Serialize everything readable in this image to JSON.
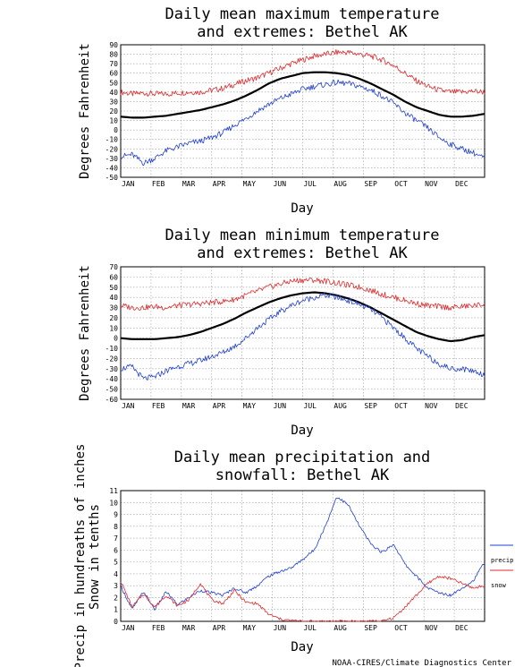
{
  "colors": {
    "blue": "#1f3fd0",
    "red": "#e0282a",
    "black": "#000000",
    "grid": "#9a9a9a"
  },
  "months": [
    "JAN",
    "FEB",
    "MAR",
    "APR",
    "MAY",
    "JUN",
    "JUL",
    "AUG",
    "SEP",
    "OCT",
    "NOV",
    "DEC"
  ],
  "credit": "NOAA-CIRES/Climate Diagnostics Center",
  "chart_data": [
    {
      "type": "line",
      "title_lines": [
        "Daily mean maximum temperature",
        "and extremes: Bethel AK"
      ],
      "xlabel": "Day",
      "ylabel": "Degrees Fahrenheit",
      "ylim": [
        -50,
        90
      ],
      "yticks": [
        -50,
        -40,
        -30,
        -20,
        -10,
        0,
        10,
        20,
        30,
        40,
        50,
        60,
        70,
        80,
        90
      ],
      "grid": true,
      "series": [
        {
          "color": "red",
          "width": 0.8,
          "values": [
            40,
            38,
            39,
            38,
            38,
            39,
            40,
            40,
            42,
            44,
            48,
            52,
            55,
            60,
            65,
            70,
            74,
            78,
            80,
            82,
            82,
            80,
            78,
            74,
            68,
            60,
            52,
            46,
            42,
            40,
            40,
            41,
            40
          ]
        },
        {
          "color": "black",
          "width": 2.2,
          "values": [
            14,
            13,
            13,
            14,
            15,
            17,
            19,
            21,
            24,
            27,
            31,
            36,
            42,
            49,
            54,
            57,
            60,
            61,
            61,
            60,
            58,
            54,
            49,
            43,
            37,
            30,
            24,
            20,
            16,
            14,
            14,
            15,
            17
          ]
        },
        {
          "color": "blue",
          "width": 0.8,
          "values": [
            -28,
            -26,
            -35,
            -30,
            -22,
            -18,
            -14,
            -12,
            -8,
            -3,
            5,
            12,
            20,
            27,
            33,
            38,
            43,
            46,
            48,
            50,
            49,
            46,
            42,
            36,
            28,
            18,
            10,
            2,
            -8,
            -15,
            -20,
            -24,
            -30
          ]
        }
      ]
    },
    {
      "type": "line",
      "title_lines": [
        "Daily mean minimum temperature",
        "and extremes: Bethel AK"
      ],
      "xlabel": "Day",
      "ylabel": "Degrees Fahrenheit",
      "ylim": [
        -60,
        70
      ],
      "yticks": [
        -60,
        -50,
        -40,
        -30,
        -20,
        -10,
        0,
        10,
        20,
        30,
        40,
        50,
        60,
        70
      ],
      "grid": true,
      "series": [
        {
          "color": "red",
          "width": 0.8,
          "values": [
            32,
            30,
            30,
            31,
            30,
            32,
            33,
            34,
            35,
            36,
            38,
            42,
            46,
            50,
            53,
            56,
            57,
            57,
            56,
            54,
            52,
            50,
            47,
            43,
            40,
            37,
            34,
            32,
            31,
            30,
            31,
            32,
            33
          ]
        },
        {
          "color": "black",
          "width": 2.2,
          "values": [
            0,
            -1,
            -1,
            -1,
            0,
            1,
            3,
            6,
            10,
            14,
            19,
            25,
            30,
            35,
            39,
            42,
            44,
            45,
            44,
            42,
            39,
            35,
            30,
            24,
            18,
            12,
            6,
            2,
            -1,
            -3,
            -2,
            1,
            3
          ]
        },
        {
          "color": "blue",
          "width": 0.8,
          "values": [
            -30,
            -28,
            -40,
            -38,
            -32,
            -28,
            -25,
            -22,
            -18,
            -14,
            -8,
            0,
            10,
            18,
            26,
            32,
            37,
            40,
            42,
            40,
            37,
            33,
            28,
            20,
            10,
            0,
            -10,
            -18,
            -25,
            -30,
            -30,
            -32,
            -36
          ]
        }
      ]
    },
    {
      "type": "line",
      "title_lines": [
        "Daily mean precipitation and",
        "snowfall: Bethel AK"
      ],
      "xlabel": "Day",
      "ylabel_lines": [
        "Precip in hundreaths of inches",
        "Snow in tenths"
      ],
      "ylim": [
        0,
        11
      ],
      "yticks": [
        0,
        1,
        2,
        3,
        4,
        5,
        6,
        7,
        8,
        9,
        10,
        11
      ],
      "grid": true,
      "legend": {
        "placement": "right",
        "entries": [
          {
            "label": "precip",
            "color": "blue"
          },
          {
            "label": "snow",
            "color": "red"
          }
        ]
      },
      "series": [
        {
          "color": "blue",
          "width": 0.8,
          "values": [
            3.0,
            1.0,
            2.5,
            1.0,
            2.5,
            1.4,
            2.0,
            2.6,
            2.4,
            2.2,
            2.8,
            2.4,
            3.0,
            3.8,
            4.2,
            4.5,
            5.2,
            6.0,
            8.0,
            10.5,
            9.8,
            8.0,
            6.5,
            5.8,
            6.5,
            4.8,
            3.8,
            2.8,
            2.4,
            2.2,
            2.8,
            3.4,
            5.0
          ]
        },
        {
          "color": "red",
          "width": 0.8,
          "values": [
            3.4,
            1.2,
            2.3,
            1.2,
            2.2,
            1.3,
            1.8,
            3.2,
            1.8,
            1.5,
            2.6,
            1.6,
            1.5,
            0.6,
            0.2,
            0.05,
            0,
            0,
            0,
            0,
            0,
            0,
            0,
            0,
            0.3,
            1.2,
            2.2,
            3.2,
            3.8,
            3.6,
            3.2,
            2.8,
            3.0
          ]
        }
      ]
    }
  ]
}
